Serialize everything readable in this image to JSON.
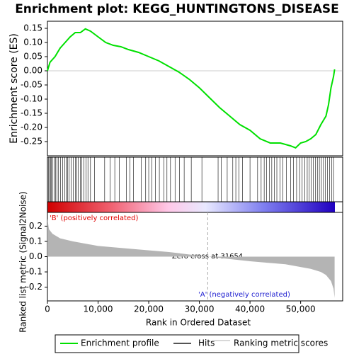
{
  "chart_data": [
    {
      "type": "line",
      "title": "Enrichment plot: KEGG_HUNTINGTONS_DISEASE",
      "ylabel": "Enrichment score (ES)",
      "xlim": [
        0,
        58300
      ],
      "ylim": [
        -0.3,
        0.175
      ],
      "yticks": [
        0.15,
        {
          "value": 0.1,
          "label": "0.10"
        },
        0.05,
        {
          "value": 0,
          "label": "0.00"
        },
        -0.05,
        {
          "value": -0.1,
          "label": "-0.10"
        },
        -0.15,
        {
          "value": -0.2,
          "label": "-0.20"
        },
        -0.25
      ],
      "series": [
        {
          "name": "Enrichment profile",
          "color": "#00e000",
          "x": [
            0,
            500,
            1500,
            2500,
            3500,
            4500,
            5500,
            6500,
            7500,
            8500,
            10000,
            11500,
            13000,
            14500,
            16000,
            18000,
            20000,
            22000,
            24000,
            26000,
            28000,
            30000,
            32000,
            34000,
            36000,
            38000,
            40000,
            42000,
            44000,
            46000,
            48000,
            49000,
            50000,
            51000,
            52000,
            53000,
            54000,
            55000,
            55500,
            56000,
            56500,
            56700
          ],
          "values": [
            0,
            0.03,
            0.05,
            0.08,
            0.1,
            0.12,
            0.135,
            0.135,
            0.148,
            0.14,
            0.12,
            0.1,
            0.09,
            0.085,
            0.075,
            0.065,
            0.05,
            0.035,
            0.015,
            -0.005,
            -0.03,
            -0.06,
            -0.095,
            -0.13,
            -0.16,
            -0.19,
            -0.21,
            -0.24,
            -0.255,
            -0.255,
            -0.265,
            -0.272,
            -0.255,
            -0.25,
            -0.24,
            -0.225,
            -0.19,
            -0.16,
            -0.12,
            -0.06,
            -0.02,
            0.005
          ]
        }
      ]
    },
    {
      "type": "rug",
      "xlim": [
        0,
        58300
      ],
      "series": [
        {
          "name": "Hits",
          "color": "#000000",
          "x": [
            200,
            400,
            600,
            800,
            1000,
            1300,
            1600,
            1900,
            2200,
            2600,
            3000,
            3400,
            3700,
            4000,
            4300,
            4700,
            5100,
            5500,
            5800,
            6100,
            6500,
            6800,
            7200,
            7600,
            8000,
            8500,
            9300,
            11300,
            12400,
            13300,
            14200,
            15600,
            16300,
            17000,
            18500,
            19400,
            20000,
            20600,
            21300,
            22100,
            23000,
            23600,
            24300,
            25200,
            26100,
            27000,
            28400,
            30500,
            33700,
            34300,
            35500,
            36600,
            37200,
            37800,
            38500,
            40000,
            41500,
            42200,
            42800,
            43300,
            43800,
            44300,
            44800,
            45300,
            45900,
            46500,
            47200,
            48000,
            48600,
            49200,
            49800,
            50300,
            50800,
            51300,
            51700,
            52100,
            52500,
            52900,
            53300,
            53700,
            54100,
            54500,
            54900,
            55300,
            55700,
            56100,
            56500
          ]
        }
      ]
    },
    {
      "type": "area",
      "ylabel": "Ranked list metric (Signal2Noise)",
      "xlabel": "Rank in Ordered Dataset",
      "xlim": [
        0,
        58300
      ],
      "xticks": [
        0,
        {
          "value": 10000,
          "label": "10,000"
        },
        {
          "value": 20000,
          "label": "20,000"
        },
        {
          "value": 30000,
          "label": "30,000"
        },
        {
          "value": 40000,
          "label": "40,000"
        },
        {
          "value": 50000,
          "label": "50,000"
        }
      ],
      "ylim": [
        -0.29,
        0.29
      ],
      "yticks": [
        0.2,
        0.1,
        {
          "value": 0,
          "label": "0.0"
        },
        -0.1,
        -0.2
      ],
      "series": [
        {
          "name": "Ranking metric scores",
          "color": "#b4b4b4",
          "x": [
            0,
            300,
            1000,
            2500,
            5000,
            10000,
            17000,
            24000,
            31654,
            40000,
            47000,
            52000,
            54000,
            55000,
            56000,
            56500,
            56700
          ],
          "values": [
            0.25,
            0.18,
            0.15,
            0.12,
            0.1,
            0.07,
            0.05,
            0.03,
            0,
            -0.03,
            -0.05,
            -0.08,
            -0.1,
            -0.12,
            -0.16,
            -0.21,
            -0.27
          ]
        }
      ],
      "zero_cross": 31654,
      "annotations": [
        "'B' (positively correlated)",
        "Zero cross at 31654",
        "'A' (negatively correlated)"
      ]
    }
  ]
}
